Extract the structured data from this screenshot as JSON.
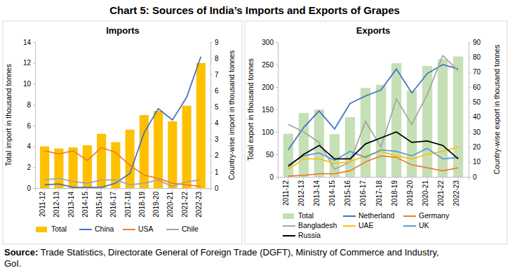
{
  "title": "Chart 5: Sources of India’s Imports and Exports of Grapes",
  "source": {
    "label": "Source:",
    "text": "Trade Statistics, Directorate General of Foreign Trade (DGFT), Ministry of Commerce and Industry, GoI."
  },
  "chart_data": [
    {
      "type": "bar",
      "title": "Imports",
      "y_label": "Total import in thousand tonnes",
      "y2_label": "Country-wise import in thousand tonnes",
      "categories": [
        "2011-12",
        "2012-13",
        "2013-14",
        "2014-15",
        "2015-16",
        "2016-17",
        "2017-18",
        "2018-19",
        "2019-20",
        "2020-21",
        "2021-22",
        "2022-23"
      ],
      "ylim": [
        0,
        14
      ],
      "yticks": [
        0,
        2,
        4,
        6,
        8,
        10,
        12,
        14
      ],
      "y2lim": [
        0,
        9
      ],
      "y2ticks": [
        0,
        1,
        2,
        3,
        4,
        5,
        6,
        7,
        8,
        9
      ],
      "grid": false,
      "legend": "bottom",
      "series": [
        {
          "name": "Total",
          "type": "bar",
          "color": "#ffc000",
          "values": [
            4.0,
            3.8,
            3.9,
            4.1,
            5.2,
            4.4,
            5.6,
            7.0,
            7.4,
            6.4,
            7.9,
            12.0
          ]
        },
        {
          "name": "China",
          "type": "line",
          "axis": "y2",
          "color": "#4472c4",
          "values": [
            0.2,
            0.25,
            0.05,
            0.05,
            0.05,
            0.3,
            0.9,
            3.4,
            4.9,
            4.2,
            5.6,
            8.1
          ]
        },
        {
          "name": "USA",
          "type": "line",
          "axis": "y2",
          "color": "#ed7d31",
          "values": [
            2.3,
            2.1,
            2.3,
            1.7,
            2.5,
            2.2,
            1.4,
            0.8,
            0.6,
            0.3,
            0.2,
            0.1
          ]
        },
        {
          "name": "Chile",
          "type": "line",
          "axis": "y2",
          "color": "#a5a5a5",
          "values": [
            0.5,
            0.6,
            0.4,
            0.3,
            0.5,
            0.5,
            0.2,
            0.3,
            0.5,
            0.1,
            0.4,
            0.5
          ]
        }
      ]
    },
    {
      "type": "bar",
      "title": "Exports",
      "y_label": "Total export in thousand tonnes",
      "y2_label": "Country-wise export in thousand tonnes",
      "categories": [
        "2011-12",
        "2012-13",
        "2013-14",
        "2014-15",
        "2015-16",
        "2016-17",
        "2017-18",
        "2018-19",
        "2019-20",
        "2020-21",
        "2021-22",
        "2022-23"
      ],
      "ylim": [
        0,
        300
      ],
      "yticks": [
        0,
        50,
        100,
        150,
        200,
        250,
        300
      ],
      "y2lim": [
        0,
        90
      ],
      "y2ticks": [
        0,
        10,
        20,
        30,
        40,
        50,
        60,
        70,
        80,
        90
      ],
      "grid": false,
      "legend": "bottom",
      "series": [
        {
          "name": "Total",
          "type": "bar",
          "color": "#c5e0b4",
          "values": [
            96,
            142,
            150,
            95,
            133,
            198,
            205,
            253,
            192,
            247,
            262,
            268
          ]
        },
        {
          "name": "Netherland",
          "type": "line",
          "axis": "y2",
          "color": "#4472c4",
          "values": [
            18,
            33,
            44,
            32,
            49,
            54,
            58,
            72,
            56,
            69,
            75,
            72
          ]
        },
        {
          "name": "Germany",
          "type": "line",
          "axis": "y2",
          "color": "#ed7d31",
          "values": [
            0.5,
            1,
            2,
            2,
            4,
            10,
            14,
            13,
            8,
            6,
            4,
            6
          ]
        },
        {
          "name": "Bangladesh",
          "type": "line",
          "axis": "y2",
          "color": "#a5a5a5",
          "values": [
            35,
            30,
            23,
            5,
            10,
            37,
            20,
            52,
            35,
            55,
            81,
            71
          ]
        },
        {
          "name": "UAE",
          "type": "line",
          "axis": "y2",
          "color": "#ffc000",
          "values": [
            5,
            12,
            12,
            9,
            10,
            14,
            17,
            14,
            12,
            15,
            17,
            20
          ]
        },
        {
          "name": "UK",
          "type": "line",
          "axis": "y2",
          "color": "#5b9bd5",
          "values": [
            8,
            14,
            16,
            11,
            17,
            13,
            18,
            17,
            14,
            19,
            12,
            13
          ]
        },
        {
          "name": "Russia",
          "type": "line",
          "axis": "y2",
          "color": "#000000",
          "values": [
            7,
            15,
            21,
            12,
            12,
            22,
            26,
            30,
            23,
            24,
            21,
            12
          ]
        }
      ]
    }
  ]
}
